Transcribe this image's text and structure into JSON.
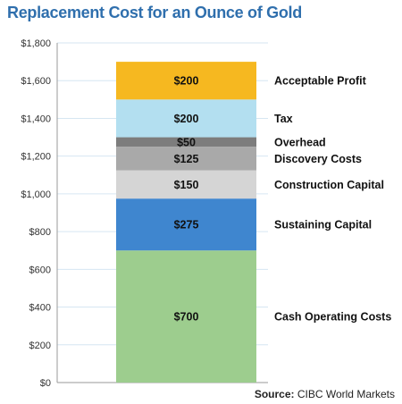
{
  "chart_data": {
    "type": "bar",
    "stacked": true,
    "title": "Replacement Cost for an Ounce of Gold",
    "ylim": [
      0,
      1800
    ],
    "yticks": [
      0,
      200,
      400,
      600,
      800,
      1000,
      1200,
      1400,
      1600,
      1800
    ],
    "ytick_labels": [
      "$0",
      "$200",
      "$400",
      "$600",
      "$800",
      "$1,000",
      "$1,200",
      "$1,400",
      "$1,600",
      "$1,800"
    ],
    "grid": "horizontal",
    "segments": [
      {
        "name": "Cash Operating Costs",
        "value": 700,
        "label": "$700",
        "color": "#9dcd8e"
      },
      {
        "name": "Sustaining Capital",
        "value": 275,
        "label": "$275",
        "color": "#3f86cf"
      },
      {
        "name": "Construction Capital",
        "value": 150,
        "label": "$150",
        "color": "#d5d5d5"
      },
      {
        "name": "Discovery Costs",
        "value": 125,
        "label": "$125",
        "color": "#a9a9a9"
      },
      {
        "name": "Overhead",
        "value": 50,
        "label": "$50",
        "color": "#7d7d7d"
      },
      {
        "name": "Tax",
        "value": 200,
        "label": "$200",
        "color": "#b3dff0"
      },
      {
        "name": "Acceptable Profit",
        "value": 200,
        "label": "$200",
        "color": "#f6b820"
      }
    ]
  },
  "source": {
    "prefix": "Source:",
    "text": "CIBC World Markets"
  }
}
